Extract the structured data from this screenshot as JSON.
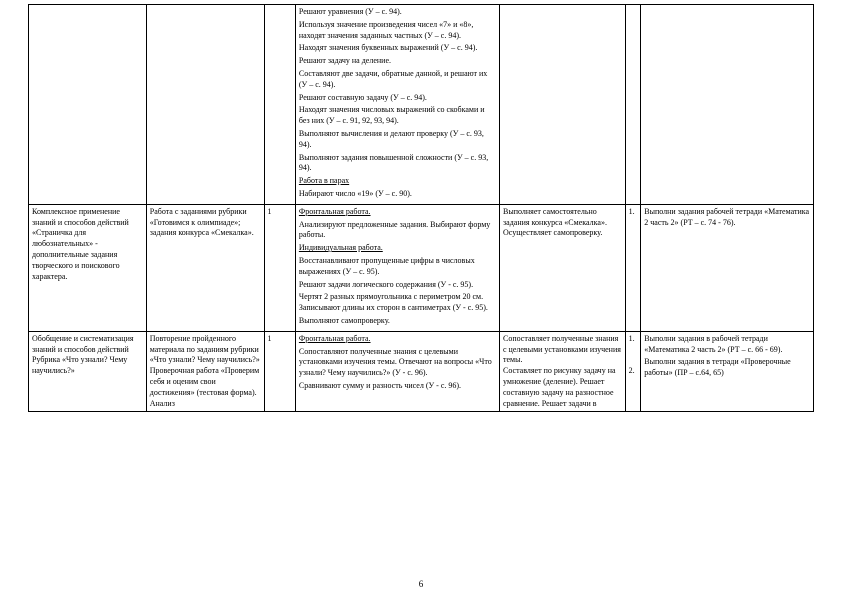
{
  "footer_page": "6",
  "row0": {
    "c4": [
      "Решают уравнения (У – с. 94).",
      "Используя значение произведения чисел «7» и «8», находят значения заданных частных (У – с. 94).",
      "Находят значения буквенных выражений (У – с. 94).",
      "Решают задачу на деление.",
      "Составляют две задачи, обратные данной, и решают их (У – с. 94).",
      "Решают составную задачу (У – с. 94).",
      "Находят значения числовых выражений со скобками и без них (У – с. 91, 92, 93, 94).",
      "Выполняют вычисления и делают проверку (У – с. 93, 94).",
      "Выполняют задания повышенной сложности (У – с. 93, 94).",
      {
        "cls": "u",
        "t": "Работа в парах"
      },
      "Набирают число «19» (У – с. 90)."
    ]
  },
  "row1": {
    "c1": "Комплексное применение знаний и способов действий\n«Страничка для любознательных» - дополнительные задания творческого и поискового характера.",
    "c2": "Работа с заданиями рубрики «Готовимся к олимпиаде»; задания конкурса «Смекалка».",
    "c3": "1",
    "c4": [
      {
        "cls": "u",
        "t": "Фронтальная работа."
      },
      "Анализируют предложенные задания. Выбирают форму работы.",
      {
        "cls": "u",
        "t": "Индивидуальная работа."
      },
      "Восстанавливают пропущенные цифры в числовых выражениях (У – с. 95).",
      "Решают задачи логического содержания (У - с. 95).",
      "Чертят 2 разных прямоугольника с периметром 20 см. Записывают длины их сторон в сантиметрах (У - с. 95).",
      "Выполняют самопроверку."
    ],
    "c5": "Выполняет самостоятельно задания конкурса «Смекалка».\nОсуществляет самопроверку.",
    "c7": [
      "Выполни задания рабочей тетради «Математика 2 часть 2» (РТ – с. 74 - 76)."
    ]
  },
  "row2": {
    "c1": "Обобщение и систематизация знаний и способов действий\nРубрика «Что узнали? Чему научились?»",
    "c2": "Повторение пройденного материала по заданиям рубрики «Что узнали? Чему научились?»\nПроверочная работа «Проверим себя и оценим свои достижения» (тестовая форма). Анализ",
    "c3": "1",
    "c4": [
      {
        "cls": "u",
        "t": "Фронтальная работа."
      },
      "Сопоставляют полученные знания с целевыми установками изучения темы. Отвечают на вопросы «Что узнали? Чему научились?» (У - с. 96).",
      "Сравнивают сумму и разность чисел (У - с. 96)."
    ],
    "c5": "Сопоставляет полученные знания с целевыми установками изучения темы.\nСоставляет по рисунку задачу на умножение (деление). Решает составную задачу на разностное сравнение. Решает задачи в",
    "c7": [
      "Выполни задания в рабочей тетради «Математика 2 часть 2» (РТ – с. 66 - 69).",
      "Выполни задания в тетради «Проверочные работы» (ПР – с.64, 65)"
    ]
  }
}
